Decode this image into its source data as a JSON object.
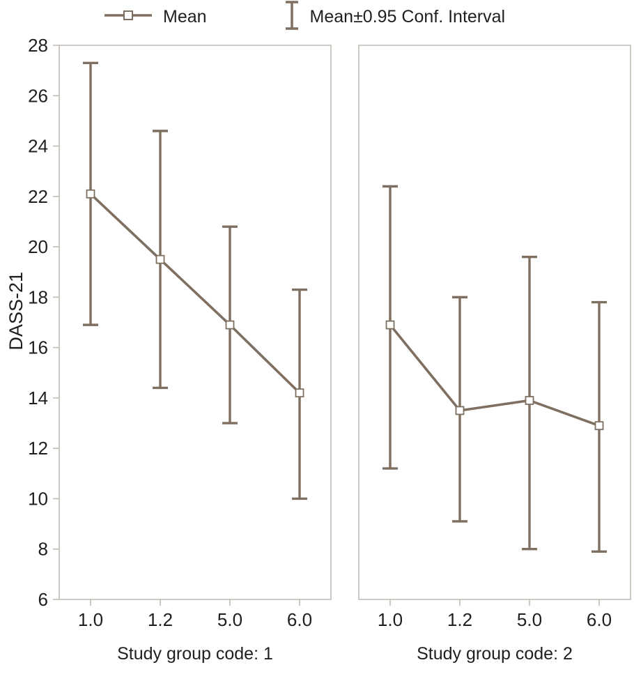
{
  "chart_data": {
    "type": "line",
    "title": "",
    "ylabel": "DASS-21",
    "ylim": [
      6,
      28
    ],
    "yticks": [
      6,
      8,
      10,
      12,
      14,
      16,
      18,
      20,
      22,
      24,
      26,
      28
    ],
    "categories": [
      "1.0",
      "1.2",
      "5.0",
      "6.0"
    ],
    "legend": [
      "Mean",
      "Mean±0.95 Conf. Interval"
    ],
    "legend_position": "top",
    "grid": false,
    "panels": [
      {
        "xlabel": "Study group code: 1",
        "series": [
          {
            "name": "Mean",
            "values": [
              22.1,
              19.5,
              16.9,
              14.2
            ]
          }
        ],
        "ci_low": [
          16.9,
          14.4,
          13.0,
          10.0
        ],
        "ci_high": [
          27.3,
          24.6,
          20.8,
          18.3
        ]
      },
      {
        "xlabel": "Study group code: 2",
        "series": [
          {
            "name": "Mean",
            "values": [
              16.9,
              13.5,
              13.9,
              12.9
            ]
          }
        ],
        "ci_low": [
          11.2,
          9.1,
          8.0,
          7.9
        ],
        "ci_high": [
          22.4,
          18.0,
          19.6,
          17.8
        ]
      }
    ],
    "colors": {
      "series": "#7e6f60",
      "frame": "#c2bcb6",
      "text": "#1f1f1f"
    }
  }
}
